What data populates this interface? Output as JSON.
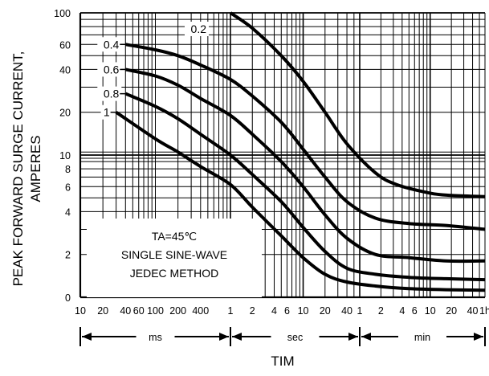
{
  "chart_data": {
    "type": "line",
    "title": "",
    "ylabel": [
      "PEAK FORWARD SURGE CURRENT,",
      "AMPERES"
    ],
    "xlabel": "TIM",
    "x_scale": "log",
    "x_range_ms": [
      10,
      3600000
    ],
    "y_scale": "log",
    "ylim": [
      1,
      100
    ],
    "y_tick_labels": [
      {
        "v": 100,
        "label": "100"
      },
      {
        "v": 60,
        "label": "60"
      },
      {
        "v": 40,
        "label": "40"
      },
      {
        "v": 20,
        "label": "20"
      },
      {
        "v": 10,
        "label": "10"
      },
      {
        "v": 8,
        "label": "8"
      },
      {
        "v": 6,
        "label": "6"
      },
      {
        "v": 4,
        "label": "4"
      },
      {
        "v": 2,
        "label": "2"
      },
      {
        "v": 1,
        "label": "0"
      }
    ],
    "x_tick_labels": [
      {
        "ms": 10,
        "label": "10"
      },
      {
        "ms": 20,
        "label": "20"
      },
      {
        "ms": 40,
        "label": "40"
      },
      {
        "ms": 60,
        "label": "60"
      },
      {
        "ms": 100,
        "label": "100"
      },
      {
        "ms": 200,
        "label": "200"
      },
      {
        "ms": 400,
        "label": "400"
      },
      {
        "ms": 1000,
        "label": "1"
      },
      {
        "ms": 2000,
        "label": "2"
      },
      {
        "ms": 4000,
        "label": "4"
      },
      {
        "ms": 6000,
        "label": "6"
      },
      {
        "ms": 10000,
        "label": "10"
      },
      {
        "ms": 20000,
        "label": "20"
      },
      {
        "ms": 40000,
        "label": "40"
      },
      {
        "ms": 60000,
        "label": "1"
      },
      {
        "ms": 120000,
        "label": "2"
      },
      {
        "ms": 240000,
        "label": "4"
      },
      {
        "ms": 360000,
        "label": "6"
      },
      {
        "ms": 600000,
        "label": "10"
      },
      {
        "ms": 1200000,
        "label": "20"
      },
      {
        "ms": 2400000,
        "label": "40"
      },
      {
        "ms": 3600000,
        "label": "1h"
      }
    ],
    "unit_ranges": [
      {
        "label": "ms",
        "from_ms": 10,
        "to_ms": 1000
      },
      {
        "label": "sec",
        "from_ms": 1000,
        "to_ms": 60000
      },
      {
        "label": "min",
        "from_ms": 60000,
        "to_ms": 3600000
      }
    ],
    "grid": true,
    "series": [
      {
        "name": "0.2",
        "points": [
          [
            1000,
            100
          ],
          [
            2000,
            78
          ],
          [
            5000,
            50
          ],
          [
            10000,
            33
          ],
          [
            20000,
            20
          ],
          [
            40000,
            12
          ],
          [
            100000,
            7.5
          ],
          [
            200000,
            6.2
          ],
          [
            600000,
            5.4
          ],
          [
            1200000,
            5.2
          ],
          [
            3600000,
            5.1
          ]
        ]
      },
      {
        "name": "0.4",
        "points": [
          [
            40,
            60
          ],
          [
            100,
            55
          ],
          [
            200,
            50
          ],
          [
            400,
            43
          ],
          [
            1000,
            34
          ],
          [
            2000,
            26
          ],
          [
            5000,
            17
          ],
          [
            10000,
            11
          ],
          [
            20000,
            7
          ],
          [
            40000,
            4.7
          ],
          [
            100000,
            3.6
          ],
          [
            300000,
            3.3
          ],
          [
            1000000,
            3.2
          ],
          [
            3600000,
            3.0
          ]
        ]
      },
      {
        "name": "0.6",
        "points": [
          [
            40,
            40
          ],
          [
            100,
            36
          ],
          [
            200,
            31
          ],
          [
            400,
            25
          ],
          [
            1000,
            19
          ],
          [
            2000,
            14
          ],
          [
            5000,
            9
          ],
          [
            10000,
            6
          ],
          [
            20000,
            3.8
          ],
          [
            40000,
            2.6
          ],
          [
            100000,
            2.0
          ],
          [
            300000,
            1.9
          ],
          [
            1000000,
            1.8
          ],
          [
            3600000,
            1.8
          ]
        ]
      },
      {
        "name": "0.8",
        "points": [
          [
            40,
            27
          ],
          [
            100,
            22
          ],
          [
            200,
            18
          ],
          [
            400,
            14
          ],
          [
            1000,
            10
          ],
          [
            2000,
            7.3
          ],
          [
            5000,
            4.7
          ],
          [
            10000,
            3.1
          ],
          [
            20000,
            2.1
          ],
          [
            40000,
            1.6
          ],
          [
            100000,
            1.45
          ],
          [
            300000,
            1.38
          ],
          [
            1000000,
            1.35
          ],
          [
            3600000,
            1.33
          ]
        ]
      },
      {
        "name": "1",
        "points": [
          [
            30,
            20
          ],
          [
            100,
            13
          ],
          [
            200,
            10.5
          ],
          [
            400,
            8.3
          ],
          [
            1000,
            6.2
          ],
          [
            2000,
            4.3
          ],
          [
            5000,
            2.7
          ],
          [
            10000,
            1.9
          ],
          [
            20000,
            1.45
          ],
          [
            40000,
            1.28
          ],
          [
            100000,
            1.2
          ],
          [
            300000,
            1.15
          ],
          [
            1000000,
            1.13
          ],
          [
            3600000,
            1.12
          ]
        ]
      }
    ],
    "annotations": [
      "TA=45℃",
      "SINGLE SINE-WAVE",
      "JEDEC METHOD"
    ]
  }
}
